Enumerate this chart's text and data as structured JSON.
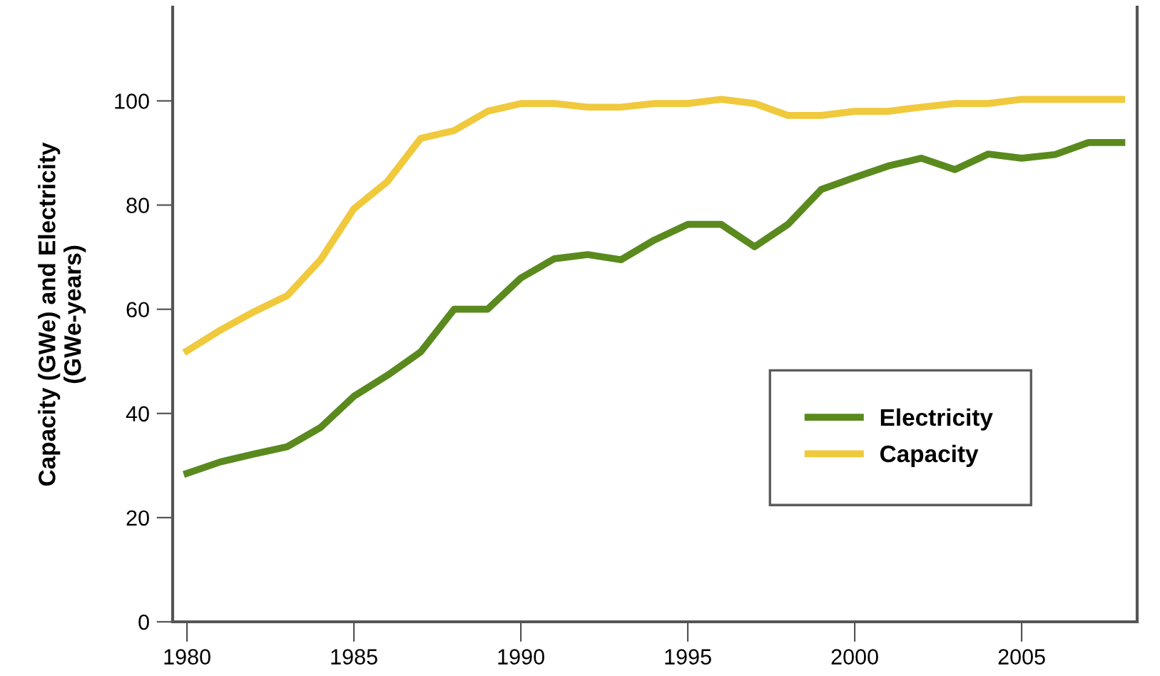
{
  "chart_data": {
    "type": "line",
    "ylabel": "Capacity (GWe) and Electricity\n(GWe-years)",
    "x": [
      1980,
      1981,
      1982,
      1983,
      1984,
      1985,
      1986,
      1987,
      1988,
      1989,
      1990,
      1991,
      1992,
      1993,
      1994,
      1995,
      1996,
      1997,
      1998,
      1999,
      2000,
      2001,
      2002,
      2003,
      2004,
      2005,
      2006,
      2007,
      2008
    ],
    "series": [
      {
        "name": "Electricity",
        "color": "#5a8a1e",
        "values": [
          28.5,
          30.7,
          32.2,
          33.6,
          37.3,
          43.3,
          47.3,
          51.8,
          60,
          60,
          66,
          69.7,
          70.5,
          69.5,
          73.3,
          76.3,
          76.3,
          72,
          76.3,
          83,
          85.3,
          87.5,
          89,
          86.8,
          89.8,
          89,
          89.7,
          92,
          92
        ]
      },
      {
        "name": "Capacity",
        "color": "#f0c93c",
        "values": [
          52,
          56,
          59.5,
          62.6,
          69.5,
          79.3,
          84.5,
          92.8,
          94.3,
          98,
          99.5,
          99.5,
          98.8,
          98.8,
          99.5,
          99.5,
          100.3,
          99.5,
          97.2,
          97.2,
          98,
          98,
          98.8,
          99.5,
          99.5,
          100.3,
          100.3,
          100.3,
          100.3
        ]
      }
    ],
    "xlim": [
      1979.57,
      2008.46
    ],
    "xticks": [
      1980,
      1985,
      1990,
      1995,
      2000,
      2005
    ],
    "ylim": [
      0,
      118
    ],
    "yticks": [
      0,
      20,
      40,
      60,
      80,
      100
    ],
    "legend": "bottom right",
    "grid": false,
    "marker": "none",
    "line_style": "solid"
  }
}
